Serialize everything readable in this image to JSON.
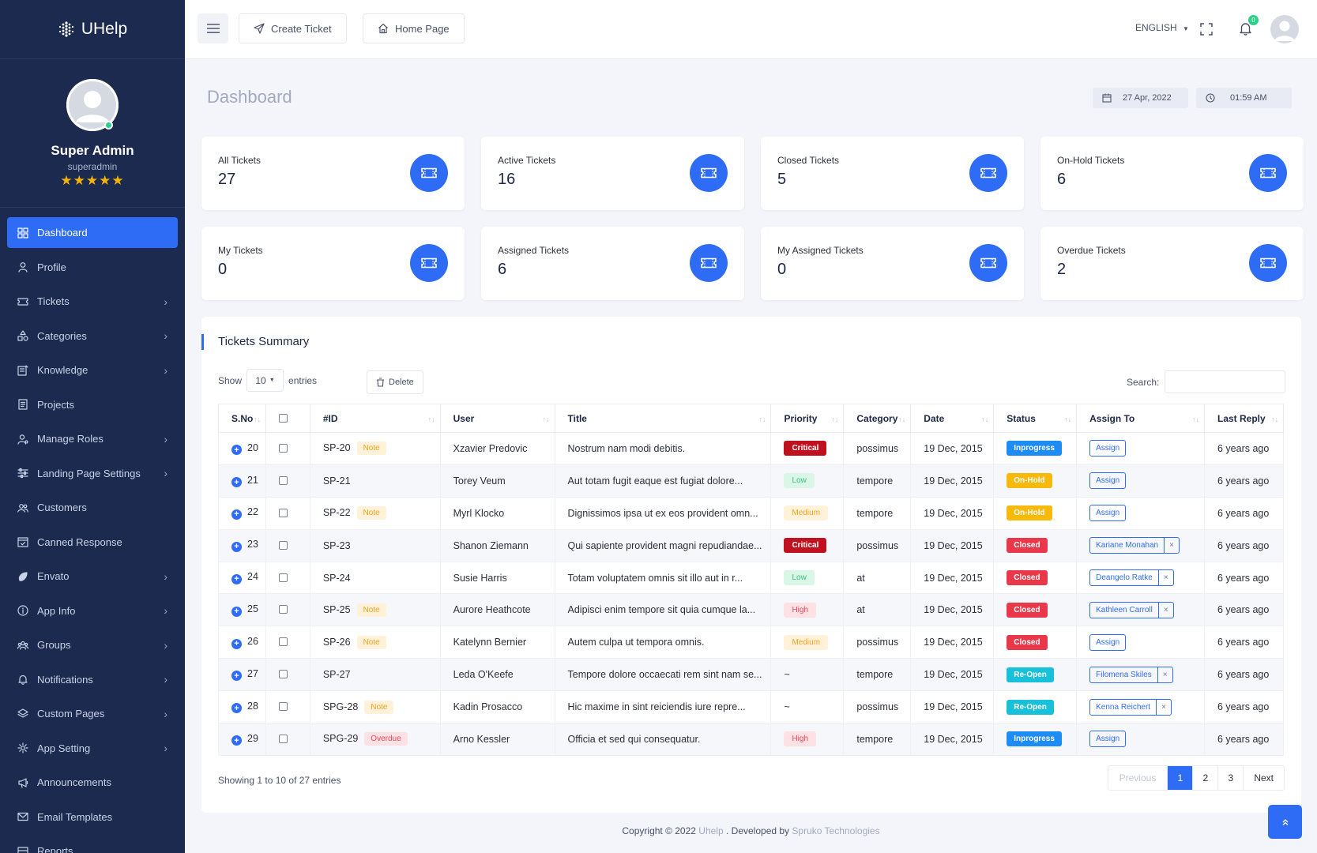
{
  "brand": {
    "name": "UHelp"
  },
  "profile": {
    "name": "Super Admin",
    "username": "superadmin",
    "stars": "★★★★★"
  },
  "sidebar": {
    "items": [
      {
        "label": "Dashboard",
        "icon": "dashboard-icon",
        "active": true,
        "chevron": false
      },
      {
        "label": "Profile",
        "icon": "user-icon",
        "chevron": false
      },
      {
        "label": "Tickets",
        "icon": "ticket-icon",
        "chevron": true
      },
      {
        "label": "Categories",
        "icon": "shapes-icon",
        "chevron": true
      },
      {
        "label": "Knowledge",
        "icon": "article-icon",
        "chevron": true
      },
      {
        "label": "Projects",
        "icon": "file-icon",
        "chevron": false
      },
      {
        "label": "Manage Roles",
        "icon": "user-role-icon",
        "chevron": true
      },
      {
        "label": "Landing Page Settings",
        "icon": "sliders-icon",
        "chevron": true
      },
      {
        "label": "Customers",
        "icon": "users-icon",
        "chevron": false
      },
      {
        "label": "Canned Response",
        "icon": "calendar-check-icon",
        "chevron": false
      },
      {
        "label": "Envato",
        "icon": "leaf-icon",
        "chevron": true
      },
      {
        "label": "App Info",
        "icon": "info-icon",
        "chevron": true
      },
      {
        "label": "Groups",
        "icon": "group-icon",
        "chevron": true
      },
      {
        "label": "Notifications",
        "icon": "bell-icon",
        "chevron": true
      },
      {
        "label": "Custom Pages",
        "icon": "layers-icon",
        "chevron": true
      },
      {
        "label": "App Setting",
        "icon": "gear-icon",
        "chevron": true
      },
      {
        "label": "Announcements",
        "icon": "megaphone-icon",
        "chevron": false
      },
      {
        "label": "Email Templates",
        "icon": "mail-icon",
        "chevron": false
      },
      {
        "label": "Reports",
        "icon": "report-icon",
        "chevron": false
      }
    ]
  },
  "header": {
    "create_ticket": "Create Ticket",
    "home_page": "Home Page",
    "language": "ENGLISH",
    "notif_count": "0"
  },
  "page": {
    "title": "Dashboard",
    "date": "27 Apr, 2022",
    "time": "01:59 AM"
  },
  "stats": [
    {
      "label": "All Tickets",
      "value": "27"
    },
    {
      "label": "Active Tickets",
      "value": "16"
    },
    {
      "label": "Closed Tickets",
      "value": "5"
    },
    {
      "label": "On-Hold Tickets",
      "value": "6"
    },
    {
      "label": "My Tickets",
      "value": "0"
    },
    {
      "label": "Assigned Tickets",
      "value": "6"
    },
    {
      "label": "My Assigned Tickets",
      "value": "0"
    },
    {
      "label": "Overdue Tickets",
      "value": "2"
    }
  ],
  "summary": {
    "title": "Tickets Summary",
    "show_label": "Show",
    "entries_value": "10",
    "entries_label": "entries",
    "delete_label": "Delete",
    "search_label": "Search:",
    "columns": [
      "S.No",
      "",
      "#ID",
      "User",
      "Title",
      "Priority",
      "Category",
      "Date",
      "Status",
      "Assign To",
      "Last Reply"
    ],
    "rows": [
      {
        "sno": "20",
        "id": "SP-20",
        "tag": "Note",
        "tagType": "note",
        "user": "Xzavier Predovic",
        "title": "Nostrum nam modi debitis.",
        "priority": "Critical",
        "pType": "critical",
        "category": "possimus",
        "date": "19 Dec, 2015",
        "status": "Inprogress",
        "sType": "inprogress",
        "assign": "Assign",
        "assignX": false,
        "reply": "6 years ago"
      },
      {
        "sno": "21",
        "id": "SP-21",
        "tag": "",
        "tagType": "",
        "user": "Torey Veum",
        "title": "Aut totam fugit eaque est fugiat dolore...",
        "priority": "Low",
        "pType": "low",
        "category": "tempore",
        "date": "19 Dec, 2015",
        "status": "On-Hold",
        "sType": "onhold",
        "assign": "Assign",
        "assignX": false,
        "reply": "6 years ago"
      },
      {
        "sno": "22",
        "id": "SP-22",
        "tag": "Note",
        "tagType": "note",
        "user": "Myrl Klocko",
        "title": "Dignissimos ipsa ut ex eos provident omn...",
        "priority": "Medium",
        "pType": "medium",
        "category": "tempore",
        "date": "19 Dec, 2015",
        "status": "On-Hold",
        "sType": "onhold",
        "assign": "Assign",
        "assignX": false,
        "reply": "6 years ago"
      },
      {
        "sno": "23",
        "id": "SP-23",
        "tag": "",
        "tagType": "",
        "user": "Shanon Ziemann",
        "title": "Qui sapiente provident magni repudiandae...",
        "priority": "Critical",
        "pType": "critical",
        "category": "possimus",
        "date": "19 Dec, 2015",
        "status": "Closed",
        "sType": "closed",
        "assign": "Kariane Monahan",
        "assignX": true,
        "reply": "6 years ago"
      },
      {
        "sno": "24",
        "id": "SP-24",
        "tag": "",
        "tagType": "",
        "user": "Susie Harris",
        "title": "Totam voluptatem omnis sit illo aut in r...",
        "priority": "Low",
        "pType": "low",
        "category": "at",
        "date": "19 Dec, 2015",
        "status": "Closed",
        "sType": "closed",
        "assign": "Deangelo Ratke",
        "assignX": true,
        "reply": "6 years ago"
      },
      {
        "sno": "25",
        "id": "SP-25",
        "tag": "Note",
        "tagType": "note",
        "user": "Aurore Heathcote",
        "title": "Adipisci enim tempore sit quia cumque la...",
        "priority": "High",
        "pType": "high",
        "category": "at",
        "date": "19 Dec, 2015",
        "status": "Closed",
        "sType": "closed",
        "assign": "Kathleen Carroll",
        "assignX": true,
        "reply": "6 years ago"
      },
      {
        "sno": "26",
        "id": "SP-26",
        "tag": "Note",
        "tagType": "note",
        "user": "Katelynn Bernier",
        "title": "Autem culpa ut tempora omnis.",
        "priority": "Medium",
        "pType": "medium",
        "category": "possimus",
        "date": "19 Dec, 2015",
        "status": "Closed",
        "sType": "closed",
        "assign": "Assign",
        "assignX": false,
        "reply": "6 years ago"
      },
      {
        "sno": "27",
        "id": "SP-27",
        "tag": "",
        "tagType": "",
        "user": "Leda O'Keefe",
        "title": "Tempore dolore occaecati rem sint nam se...",
        "priority": "~",
        "pType": "",
        "category": "tempore",
        "date": "19 Dec, 2015",
        "status": "Re-Open",
        "sType": "reopen",
        "assign": "Filomena Skiles",
        "assignX": true,
        "reply": "6 years ago"
      },
      {
        "sno": "28",
        "id": "SPG-28",
        "tag": "Note",
        "tagType": "note",
        "user": "Kadin Prosacco",
        "title": "Hic maxime in sint reiciendis iure repre...",
        "priority": "~",
        "pType": "",
        "category": "possimus",
        "date": "19 Dec, 2015",
        "status": "Re-Open",
        "sType": "reopen",
        "assign": "Kenna Reichert",
        "assignX": true,
        "reply": "6 years ago"
      },
      {
        "sno": "29",
        "id": "SPG-29",
        "tag": "Overdue",
        "tagType": "overdue",
        "user": "Arno Kessler",
        "title": "Officia et sed qui consequatur.",
        "priority": "High",
        "pType": "high",
        "category": "tempore",
        "date": "19 Dec, 2015",
        "status": "Inprogress",
        "sType": "inprogress",
        "assign": "Assign",
        "assignX": false,
        "reply": "6 years ago"
      }
    ],
    "info": "Showing 1 to 10 of 27 entries",
    "pagination": {
      "previous": "Previous",
      "pages": [
        "1",
        "2",
        "3"
      ],
      "current": "1",
      "next": "Next"
    }
  },
  "footer": {
    "prefix": "Copyright © 2022",
    "app": "Uhelp",
    "middle": ". Developed by",
    "company": "Spruko Technologies"
  },
  "colors": {
    "accent": "#2f6cf6",
    "sidebar": "#1b2a4e",
    "critical": "#c0121e",
    "closed": "#e8384a",
    "onhold": "#f7b90a",
    "reopen": "#19c0d9",
    "inprogress": "#1e8cf5"
  }
}
